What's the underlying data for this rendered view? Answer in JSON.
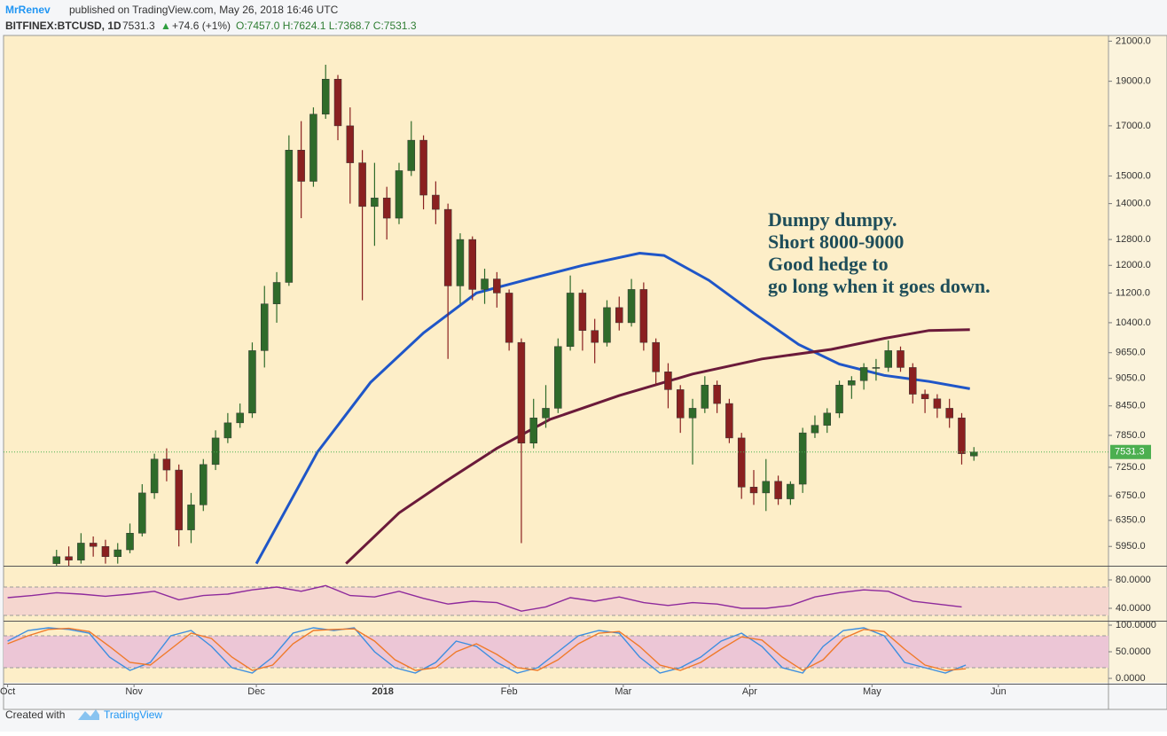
{
  "header": {
    "author": "MrRenev",
    "published": "published on TradingView.com, May 26, 2018 16:46 UTC",
    "symbol": "BITFINEX:BTCUSD, 1D",
    "last": "7531.3",
    "change": "+74.6 (+1%)",
    "ohlc": "O:7457.0 H:7624.1 L:7368.7 C:7531.3"
  },
  "chart_data": [
    {
      "type": "candlestick",
      "log_scale": true,
      "up_color": "#2f6b2a",
      "down_color": "#8a2020",
      "xlim": [
        -1,
        270
      ],
      "ylim": [
        5670,
        21300
      ],
      "xticks": [
        {
          "value": 0,
          "label": "Oct"
        },
        {
          "value": 31,
          "label": "Nov"
        },
        {
          "value": 61,
          "label": "Dec"
        },
        {
          "value": 92,
          "label": "2018"
        },
        {
          "value": 123,
          "label": "Feb"
        },
        {
          "value": 151,
          "label": "Mar"
        },
        {
          "value": 182,
          "label": "Apr"
        },
        {
          "value": 212,
          "label": "May"
        },
        {
          "value": 243,
          "label": "Jun"
        }
      ],
      "yticks": [
        {
          "value": 21000,
          "label": "21000.0"
        },
        {
          "value": 19000,
          "label": "19000.0"
        },
        {
          "value": 17000,
          "label": "17000.0"
        },
        {
          "value": 15000,
          "label": "15000.0"
        },
        {
          "value": 14000,
          "label": "14000.0"
        },
        {
          "value": 12800,
          "label": "12800.0"
        },
        {
          "value": 12000,
          "label": "12000.0"
        },
        {
          "value": 11200,
          "label": "11200.0"
        },
        {
          "value": 10400,
          "label": "10400.0"
        },
        {
          "value": 9650,
          "label": "9650.0"
        },
        {
          "value": 9050,
          "label": "9050.0"
        },
        {
          "value": 8450,
          "label": "8450.0"
        },
        {
          "value": 7850,
          "label": "7850.0"
        },
        {
          "value": 7250,
          "label": "7250.0"
        },
        {
          "value": 6750,
          "label": "6750.0"
        },
        {
          "value": 6350,
          "label": "6350.0"
        },
        {
          "value": 5950,
          "label": "5950.0"
        }
      ],
      "candles": {
        "x": [
          12,
          15,
          18,
          21,
          24,
          27,
          30,
          33,
          36,
          39,
          42,
          45,
          48,
          51,
          54,
          57,
          60,
          63,
          66,
          69,
          72,
          75,
          78,
          81,
          84,
          87,
          90,
          93,
          96,
          99,
          102,
          105,
          108,
          111,
          114,
          117,
          120,
          123,
          126,
          129,
          132,
          135,
          138,
          141,
          144,
          147,
          150,
          153,
          156,
          159,
          162,
          165,
          168,
          171,
          174,
          177,
          180,
          183,
          186,
          189,
          192,
          195,
          198,
          201,
          204,
          207,
          210,
          213,
          216,
          219,
          222,
          225,
          228,
          231,
          234,
          237
        ],
        "open": [
          5700,
          5800,
          5750,
          6000,
          5950,
          5800,
          5900,
          6150,
          6800,
          7400,
          7200,
          6200,
          6600,
          7300,
          7800,
          8100,
          8300,
          9700,
          10900,
          11500,
          16000,
          14800,
          17500,
          19100,
          17000,
          15500,
          13900,
          14200,
          13500,
          15200,
          16400,
          14300,
          13800,
          11400,
          12800,
          11300,
          11600,
          11200,
          9900,
          7700,
          8200,
          8400,
          9800,
          11200,
          10200,
          9900,
          10800,
          10400,
          11300,
          9900,
          9200,
          8800,
          8200,
          8400,
          8900,
          8500,
          7800,
          6900,
          6800,
          7000,
          6700,
          6950,
          7900,
          8050,
          8300,
          8900,
          9000,
          9300,
          9300,
          9700,
          9300,
          8700,
          8600,
          8400,
          8200,
          7457
        ],
        "high": [
          5900,
          5950,
          6150,
          6100,
          6050,
          6000,
          6300,
          6950,
          7500,
          7600,
          7300,
          6800,
          7400,
          7950,
          8300,
          8500,
          9900,
          11400,
          11800,
          16600,
          17200,
          17800,
          19800,
          19300,
          17800,
          16000,
          15500,
          14600,
          15500,
          17200,
          16600,
          14800,
          14000,
          13000,
          12900,
          11900,
          11800,
          11300,
          10000,
          8600,
          8900,
          10000,
          11700,
          11300,
          10500,
          11000,
          11100,
          11600,
          11500,
          10000,
          9400,
          8900,
          8600,
          9100,
          9000,
          8600,
          7900,
          7200,
          7400,
          7100,
          7000,
          8000,
          8250,
          8400,
          9000,
          9100,
          9400,
          9500,
          9950,
          9800,
          9400,
          8800,
          8700,
          8600,
          8300,
          7624.1
        ],
        "low": [
          5600,
          5600,
          5700,
          5800,
          5700,
          5700,
          5850,
          6100,
          6700,
          7000,
          5950,
          6000,
          6500,
          7200,
          7700,
          8000,
          8200,
          9300,
          10400,
          11400,
          13500,
          14600,
          17300,
          16400,
          14000,
          11000,
          12600,
          12800,
          13300,
          15000,
          13800,
          13300,
          9500,
          10900,
          11000,
          10900,
          10800,
          9700,
          6000,
          7600,
          8000,
          8300,
          9700,
          9700,
          9400,
          9800,
          10200,
          10300,
          9700,
          8900,
          8400,
          7900,
          7300,
          8300,
          8300,
          7700,
          6700,
          6600,
          6500,
          6600,
          6600,
          6800,
          7800,
          7900,
          8200,
          8600,
          8800,
          9000,
          9200,
          9200,
          8500,
          8300,
          8200,
          8000,
          7300,
          7368.7
        ],
        "close": [
          5800,
          5750,
          6000,
          5950,
          5800,
          5900,
          6150,
          6800,
          7400,
          7200,
          6200,
          6600,
          7300,
          7800,
          8100,
          8300,
          9700,
          10900,
          11500,
          16000,
          14800,
          17500,
          19100,
          17000,
          15500,
          13900,
          14200,
          13500,
          15200,
          16400,
          14300,
          13800,
          11400,
          12800,
          11300,
          11600,
          11200,
          9900,
          7700,
          8200,
          8400,
          9800,
          11200,
          10200,
          9900,
          10800,
          10400,
          11300,
          9900,
          9200,
          8800,
          8200,
          8400,
          8900,
          8500,
          7800,
          6900,
          6800,
          7000,
          6700,
          6950,
          7900,
          8050,
          8300,
          8900,
          9000,
          9300,
          9300,
          9700,
          9300,
          8700,
          8600,
          8400,
          8200,
          7500,
          7531.3
        ]
      },
      "series": [
        {
          "color": "#1f56c8",
          "x": [
            61,
            76,
            89,
            102,
            115,
            128,
            141,
            155,
            161,
            172,
            183,
            194,
            204,
            215,
            226,
            236
          ],
          "values": [
            5700,
            7530,
            8960,
            10140,
            11200,
            11600,
            12000,
            12370,
            12300,
            11560,
            10650,
            9850,
            9380,
            9120,
            8980,
            8820
          ]
        },
        {
          "color": "#6b1a3a",
          "x": [
            83,
            96,
            107,
            120,
            133,
            150,
            168,
            185,
            202,
            215,
            226,
            236
          ],
          "values": [
            5700,
            6470,
            6980,
            7600,
            8170,
            8670,
            9150,
            9500,
            9730,
            10000,
            10200,
            10220
          ]
        }
      ],
      "annotations": [
        "Dumpy dumpy.",
        "Short 8000-9000",
        "Good hedge to",
        "go long when it goes down."
      ]
    },
    {
      "type": "line",
      "ylim": [
        22.5,
        97.5
      ],
      "bands": [
        30,
        70
      ],
      "yticks": [
        {
          "value": 80,
          "label": "80.0000"
        },
        {
          "value": 40,
          "label": "40.0000"
        }
      ],
      "series": [
        {
          "color": "#8e2a9c",
          "x": [
            0,
            6,
            12,
            18,
            24,
            30,
            36,
            42,
            48,
            54,
            60,
            66,
            72,
            78,
            84,
            90,
            96,
            102,
            108,
            114,
            120,
            126,
            132,
            138,
            144,
            150,
            156,
            162,
            168,
            174,
            180,
            186,
            192,
            198,
            204,
            210,
            216,
            222,
            228,
            234
          ],
          "values": [
            55,
            58,
            62,
            60,
            57,
            60,
            64,
            52,
            58,
            60,
            66,
            70,
            64,
            72,
            58,
            56,
            64,
            54,
            46,
            50,
            48,
            36,
            42,
            55,
            50,
            56,
            48,
            44,
            48,
            46,
            40,
            40,
            44,
            56,
            62,
            66,
            64,
            50,
            46,
            42
          ]
        }
      ]
    },
    {
      "type": "line",
      "ylim": [
        -8.3,
        105
      ],
      "bands": [
        20,
        80
      ],
      "yticks": [
        {
          "value": 100,
          "label": "100.0000"
        },
        {
          "value": 50,
          "label": "50.0000"
        },
        {
          "value": 0,
          "label": "0.0000"
        }
      ],
      "series": [
        {
          "color": "#3d8ee0",
          "x": [
            0,
            5,
            10,
            15,
            20,
            25,
            30,
            35,
            40,
            45,
            50,
            55,
            60,
            65,
            70,
            75,
            80,
            85,
            90,
            95,
            100,
            105,
            110,
            115,
            120,
            125,
            130,
            135,
            140,
            145,
            150,
            155,
            160,
            165,
            170,
            175,
            180,
            185,
            190,
            195,
            200,
            205,
            210,
            215,
            220,
            225,
            230,
            235
          ],
          "values": [
            70,
            90,
            95,
            92,
            85,
            40,
            15,
            30,
            80,
            90,
            60,
            20,
            10,
            40,
            85,
            95,
            90,
            95,
            50,
            20,
            10,
            30,
            70,
            60,
            30,
            10,
            20,
            50,
            80,
            90,
            85,
            40,
            10,
            20,
            40,
            70,
            85,
            60,
            20,
            10,
            60,
            90,
            95,
            80,
            30,
            20,
            10,
            25
          ]
        },
        {
          "color": "#f07a2a",
          "x": [
            0,
            5,
            10,
            15,
            20,
            25,
            30,
            35,
            40,
            45,
            50,
            55,
            60,
            65,
            70,
            75,
            80,
            85,
            90,
            95,
            100,
            105,
            110,
            115,
            120,
            125,
            130,
            135,
            140,
            145,
            150,
            155,
            160,
            165,
            170,
            175,
            180,
            185,
            190,
            195,
            200,
            205,
            210,
            215,
            220,
            225,
            230,
            235
          ],
          "values": [
            65,
            80,
            92,
            94,
            88,
            60,
            30,
            25,
            55,
            85,
            75,
            40,
            15,
            25,
            65,
            90,
            92,
            93,
            70,
            35,
            15,
            20,
            50,
            65,
            45,
            20,
            15,
            35,
            65,
            85,
            88,
            60,
            25,
            15,
            30,
            55,
            78,
            72,
            40,
            15,
            35,
            75,
            92,
            88,
            55,
            25,
            15,
            18
          ]
        }
      ]
    }
  ],
  "footer": {
    "text": "Created with",
    "brand": "TradingView"
  }
}
